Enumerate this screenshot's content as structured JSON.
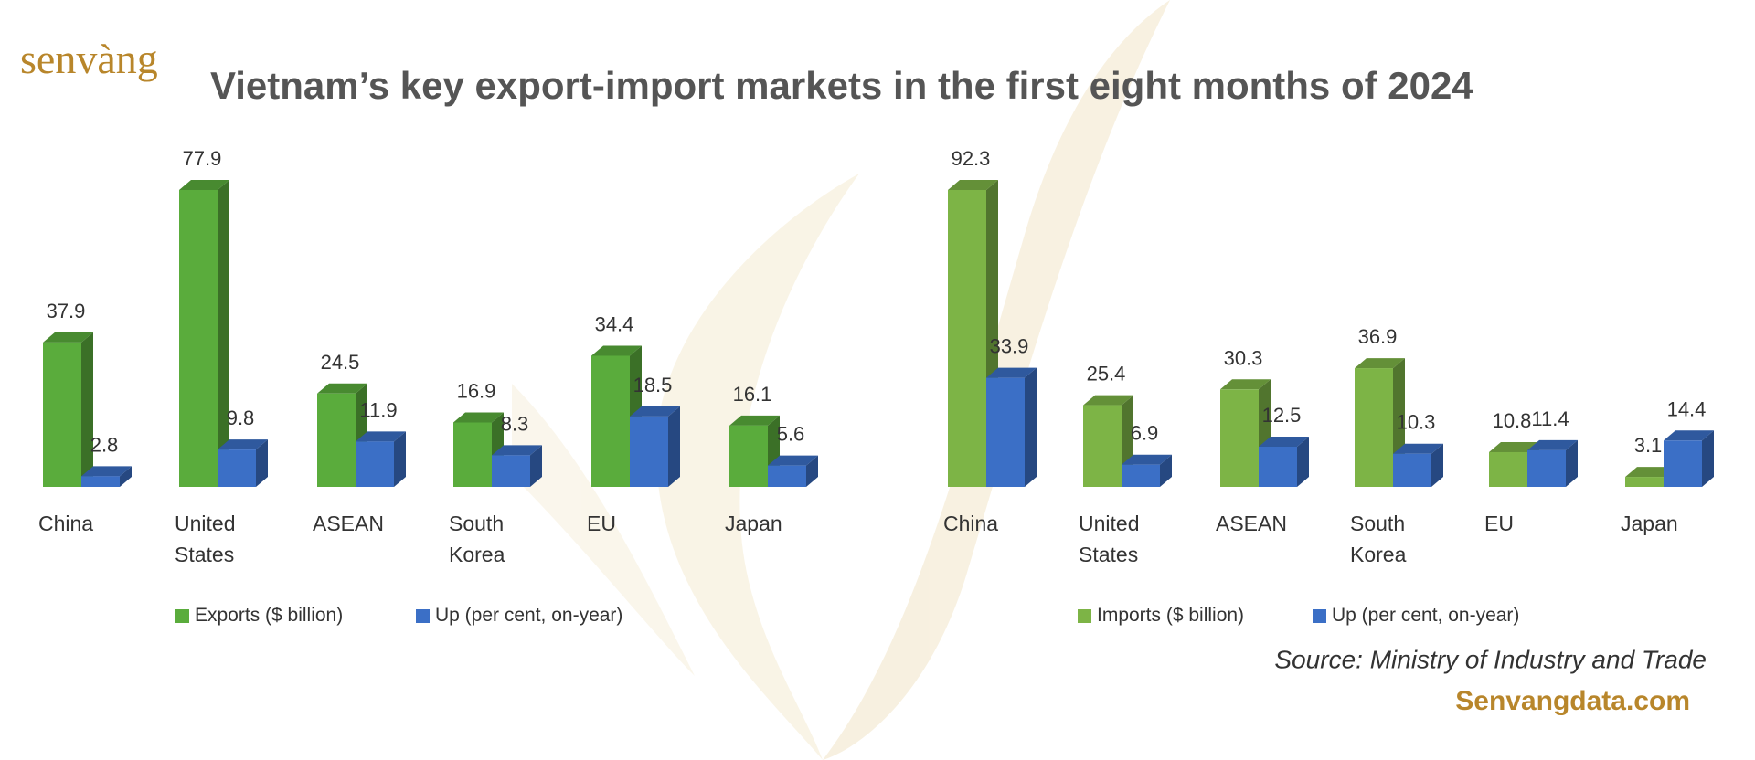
{
  "logo": "senvàng",
  "title": "Vietnam’s key export-import markets in the first eight months of 2024",
  "source": "Source: Ministry of Industry and Trade",
  "website": "Senvangdata.com",
  "chart_data": [
    {
      "type": "bar",
      "categories": [
        "China",
        "United States",
        "ASEAN",
        "South Korea",
        "EU",
        "Japan"
      ],
      "series": [
        {
          "name": "Exports ($ billion)",
          "color": "#5aac3c",
          "values": [
            37.9,
            77.9,
            24.5,
            16.9,
            34.4,
            16.1
          ]
        },
        {
          "name": "Up (per cent, on-year)",
          "color": "#3b6fc6",
          "values": [
            2.8,
            9.8,
            11.9,
            8.3,
            18.5,
            5.6
          ]
        }
      ]
    },
    {
      "type": "bar",
      "categories": [
        "China",
        "United States",
        "ASEAN",
        "South Korea",
        "EU",
        "Japan"
      ],
      "series": [
        {
          "name": "Imports ($ billion)",
          "color": "#7db446",
          "values": [
            92.3,
            25.4,
            30.3,
            36.9,
            10.8,
            3.1
          ]
        },
        {
          "name": "Up (per cent, on-year)",
          "color": "#3b6fc6",
          "values": [
            33.9,
            6.9,
            12.5,
            10.3,
            11.4,
            14.4
          ]
        }
      ]
    }
  ]
}
